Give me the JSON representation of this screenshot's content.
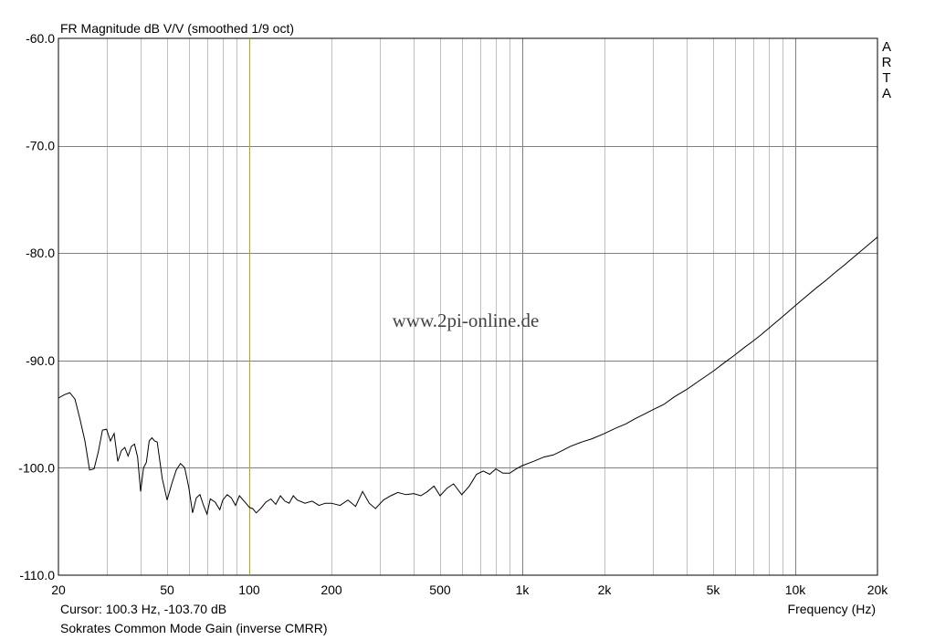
{
  "chart_data": {
    "type": "line",
    "title": "FR Magnitude dB V/V (smoothed 1/9 oct)",
    "xlabel": "Frequency (Hz)",
    "ylabel": "",
    "xscale": "log",
    "xlim": [
      20,
      20000
    ],
    "ylim": [
      -110,
      -60
    ],
    "grid": true,
    "y_ticks": [
      {
        "value": -60,
        "label": "-60.0"
      },
      {
        "value": -70,
        "label": "-70.0"
      },
      {
        "value": -80,
        "label": "-80.0"
      },
      {
        "value": -90,
        "label": "-90.0"
      },
      {
        "value": -100,
        "label": "-100.0"
      },
      {
        "value": -110,
        "label": "-110.0"
      }
    ],
    "x_ticks": [
      {
        "value": 20,
        "label": "20"
      },
      {
        "value": 50,
        "label": "50"
      },
      {
        "value": 100,
        "label": "100"
      },
      {
        "value": 200,
        "label": "200"
      },
      {
        "value": 500,
        "label": "500"
      },
      {
        "value": 1000,
        "label": "1k"
      },
      {
        "value": 2000,
        "label": "2k"
      },
      {
        "value": 5000,
        "label": "5k"
      },
      {
        "value": 10000,
        "label": "10k"
      },
      {
        "value": 20000,
        "label": "20k"
      }
    ],
    "cursor": {
      "frequency_hz": 100.3,
      "color": "#c8a000",
      "label": "Cursor: 100.3 Hz, -103.70 dB"
    },
    "series": [
      {
        "color": "#000000",
        "points": [
          [
            20,
            -93.5
          ],
          [
            21,
            -93.2
          ],
          [
            22,
            -93.0
          ],
          [
            23,
            -93.6
          ],
          [
            24,
            -95.5
          ],
          [
            25,
            -97.5
          ],
          [
            26,
            -100.2
          ],
          [
            27,
            -100.1
          ],
          [
            28,
            -98.5
          ],
          [
            29,
            -96.5
          ],
          [
            30,
            -96.4
          ],
          [
            31,
            -97.5
          ],
          [
            32,
            -96.8
          ],
          [
            33,
            -99.4
          ],
          [
            34,
            -98.4
          ],
          [
            35,
            -98.1
          ],
          [
            36,
            -98.9
          ],
          [
            37,
            -98.0
          ],
          [
            38,
            -97.8
          ],
          [
            39,
            -99.0
          ],
          [
            40,
            -102.2
          ],
          [
            41,
            -100.0
          ],
          [
            42,
            -99.5
          ],
          [
            43,
            -97.5
          ],
          [
            44,
            -97.2
          ],
          [
            45,
            -97.5
          ],
          [
            46,
            -97.6
          ],
          [
            48,
            -101.0
          ],
          [
            50,
            -103.0
          ],
          [
            52,
            -101.5
          ],
          [
            54,
            -100.2
          ],
          [
            56,
            -99.6
          ],
          [
            58,
            -100.0
          ],
          [
            60,
            -101.8
          ],
          [
            62,
            -104.2
          ],
          [
            64,
            -102.8
          ],
          [
            66,
            -102.5
          ],
          [
            68,
            -103.5
          ],
          [
            70,
            -104.3
          ],
          [
            72,
            -102.9
          ],
          [
            75,
            -103.2
          ],
          [
            78,
            -103.9
          ],
          [
            80,
            -103.0
          ],
          [
            83,
            -102.5
          ],
          [
            86,
            -102.8
          ],
          [
            89,
            -103.5
          ],
          [
            92,
            -102.6
          ],
          [
            95,
            -103.0
          ],
          [
            100.3,
            -103.7
          ],
          [
            103,
            -103.8
          ],
          [
            106,
            -104.2
          ],
          [
            110,
            -103.8
          ],
          [
            115,
            -103.2
          ],
          [
            120,
            -102.9
          ],
          [
            125,
            -103.4
          ],
          [
            130,
            -102.6
          ],
          [
            135,
            -103.1
          ],
          [
            140,
            -103.3
          ],
          [
            145,
            -102.6
          ],
          [
            150,
            -103.0
          ],
          [
            160,
            -103.3
          ],
          [
            170,
            -103.1
          ],
          [
            180,
            -103.5
          ],
          [
            190,
            -103.3
          ],
          [
            200,
            -103.3
          ],
          [
            215,
            -103.5
          ],
          [
            230,
            -103.0
          ],
          [
            245,
            -103.6
          ],
          [
            260,
            -102.2
          ],
          [
            275,
            -103.3
          ],
          [
            290,
            -103.8
          ],
          [
            310,
            -103.0
          ],
          [
            330,
            -102.6
          ],
          [
            350,
            -102.3
          ],
          [
            375,
            -102.5
          ],
          [
            400,
            -102.4
          ],
          [
            425,
            -102.6
          ],
          [
            450,
            -102.2
          ],
          [
            475,
            -101.7
          ],
          [
            500,
            -102.6
          ],
          [
            530,
            -101.9
          ],
          [
            560,
            -101.5
          ],
          [
            600,
            -102.5
          ],
          [
            640,
            -101.7
          ],
          [
            680,
            -100.6
          ],
          [
            720,
            -100.3
          ],
          [
            760,
            -100.6
          ],
          [
            800,
            -100.1
          ],
          [
            850,
            -100.5
          ],
          [
            900,
            -100.5
          ],
          [
            950,
            -100.1
          ],
          [
            1000,
            -99.8
          ],
          [
            1100,
            -99.4
          ],
          [
            1200,
            -99.0
          ],
          [
            1300,
            -98.8
          ],
          [
            1400,
            -98.4
          ],
          [
            1500,
            -98.0
          ],
          [
            1650,
            -97.6
          ],
          [
            1800,
            -97.3
          ],
          [
            2000,
            -96.8
          ],
          [
            2200,
            -96.3
          ],
          [
            2400,
            -95.9
          ],
          [
            2600,
            -95.4
          ],
          [
            2800,
            -95.0
          ],
          [
            3000,
            -94.6
          ],
          [
            3300,
            -94.1
          ],
          [
            3600,
            -93.4
          ],
          [
            4000,
            -92.7
          ],
          [
            4500,
            -91.8
          ],
          [
            5000,
            -91.0
          ],
          [
            5500,
            -90.2
          ],
          [
            6000,
            -89.5
          ],
          [
            6500,
            -88.8
          ],
          [
            7000,
            -88.2
          ],
          [
            7500,
            -87.6
          ],
          [
            8000,
            -87.0
          ],
          [
            9000,
            -85.9
          ],
          [
            10000,
            -84.9
          ],
          [
            11000,
            -84.0
          ],
          [
            12000,
            -83.2
          ],
          [
            13000,
            -82.5
          ],
          [
            14000,
            -81.8
          ],
          [
            15000,
            -81.2
          ],
          [
            16500,
            -80.3
          ],
          [
            18000,
            -79.5
          ],
          [
            20000,
            -78.5
          ]
        ]
      }
    ]
  },
  "watermark": "www.2pi-online.de",
  "brand": [
    "A",
    "R",
    "T",
    "A"
  ],
  "caption": "Sokrates Common Mode Gain (inverse CMRR)"
}
